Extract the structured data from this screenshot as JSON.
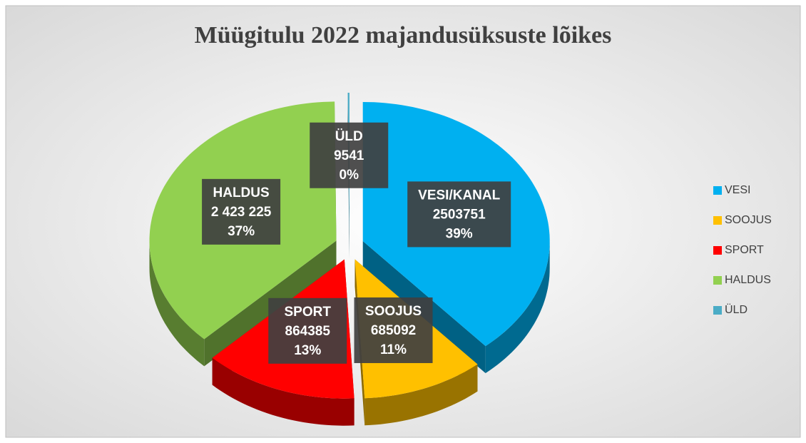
{
  "chart_data": {
    "type": "pie",
    "title": "Müügitulu 2022 majandusüksuste lõikes",
    "categories": [
      "VESI",
      "SOOJUS",
      "SPORT",
      "HALDUS",
      "ÜLD"
    ],
    "label_names": [
      "VESI/KANAL",
      "SOOJUS",
      "SPORT",
      "HALDUS",
      "ÜLD"
    ],
    "values": [
      2503751,
      685092,
      864385,
      2423225,
      9541
    ],
    "value_labels": [
      "2503751",
      "685092",
      "864385",
      "2 423 225",
      "9541"
    ],
    "percent_labels": [
      "39%",
      "11%",
      "13%",
      "37%",
      "0%"
    ],
    "colors": [
      "#00b0f0",
      "#ffc000",
      "#ff0000",
      "#92d050",
      "#4bacc6"
    ],
    "legend": "right"
  }
}
